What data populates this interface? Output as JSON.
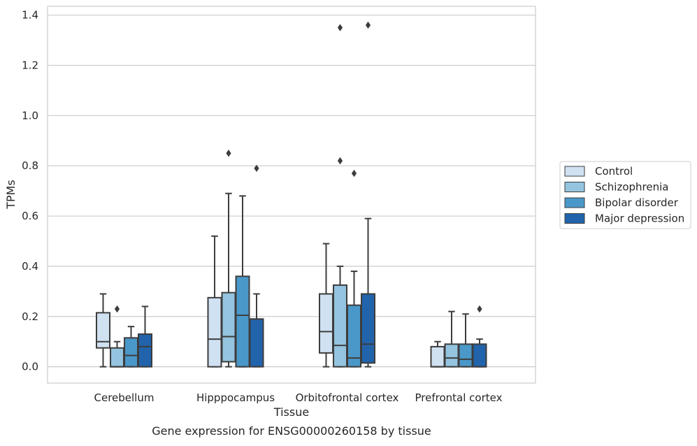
{
  "chart_data": {
    "type": "box",
    "xlabel": "Tissue",
    "ylabel": "TPMs",
    "caption": "Gene expression for ENSG00000260158 by tissue",
    "ylim": [
      -0.065,
      1.435
    ],
    "yticks": [
      0.0,
      0.2,
      0.4,
      0.6,
      0.8,
      1.0,
      1.2,
      1.4
    ],
    "ytick_labels": [
      "0.0",
      "0.2",
      "0.4",
      "0.6",
      "0.8",
      "1.0",
      "1.2",
      "1.4"
    ],
    "grid": "horizontal",
    "legend_position": "right",
    "categories": [
      "Cerebellum",
      "Hipppocampus",
      "Orbitofrontal cortex",
      "Prefrontal cortex"
    ],
    "series": [
      {
        "name": "Control",
        "color": "#d0e1f2",
        "boxes": [
          {
            "whislo": 0.0,
            "q1": 0.075,
            "med": 0.1,
            "q3": 0.215,
            "whishi": 0.29,
            "fliers": []
          },
          {
            "whislo": 0.0,
            "q1": 0.0,
            "med": 0.11,
            "q3": 0.275,
            "whishi": 0.52,
            "fliers": []
          },
          {
            "whislo": 0.0,
            "q1": 0.055,
            "med": 0.14,
            "q3": 0.29,
            "whishi": 0.49,
            "fliers": []
          },
          {
            "whislo": 0.0,
            "q1": 0.0,
            "med": 0.0,
            "q3": 0.08,
            "whishi": 0.1,
            "fliers": []
          }
        ]
      },
      {
        "name": "Schizophrenia",
        "color": "#94c4df",
        "boxes": [
          {
            "whislo": 0.0,
            "q1": 0.0,
            "med": 0.0,
            "q3": 0.075,
            "whishi": 0.1,
            "fliers": [
              0.23
            ]
          },
          {
            "whislo": 0.0,
            "q1": 0.02,
            "med": 0.12,
            "q3": 0.295,
            "whishi": 0.69,
            "fliers": [
              0.85
            ]
          },
          {
            "whislo": 0.0,
            "q1": 0.0,
            "med": 0.085,
            "q3": 0.325,
            "whishi": 0.4,
            "fliers": [
              0.82,
              1.35
            ]
          },
          {
            "whislo": 0.0,
            "q1": 0.0,
            "med": 0.035,
            "q3": 0.09,
            "whishi": 0.22,
            "fliers": []
          }
        ]
      },
      {
        "name": "Bipolar disorder",
        "color": "#4a98c9",
        "boxes": [
          {
            "whislo": 0.0,
            "q1": 0.0,
            "med": 0.045,
            "q3": 0.115,
            "whishi": 0.16,
            "fliers": []
          },
          {
            "whislo": 0.0,
            "q1": 0.0,
            "med": 0.205,
            "q3": 0.36,
            "whishi": 0.68,
            "fliers": []
          },
          {
            "whislo": 0.0,
            "q1": 0.0,
            "med": 0.035,
            "q3": 0.245,
            "whishi": 0.38,
            "fliers": [
              0.77
            ]
          },
          {
            "whislo": 0.0,
            "q1": 0.0,
            "med": 0.03,
            "q3": 0.09,
            "whishi": 0.21,
            "fliers": []
          }
        ]
      },
      {
        "name": "Major depression",
        "color": "#2164ab",
        "boxes": [
          {
            "whislo": 0.0,
            "q1": 0.0,
            "med": 0.08,
            "q3": 0.13,
            "whishi": 0.24,
            "fliers": []
          },
          {
            "whislo": 0.0,
            "q1": 0.0,
            "med": 0.19,
            "q3": 0.19,
            "whishi": 0.29,
            "fliers": [
              0.79
            ]
          },
          {
            "whislo": 0.0,
            "q1": 0.015,
            "med": 0.09,
            "q3": 0.29,
            "whishi": 0.59,
            "fliers": [
              1.36
            ]
          },
          {
            "whislo": 0.0,
            "q1": 0.0,
            "med": 0.0,
            "q3": 0.09,
            "whishi": 0.11,
            "fliers": [
              0.23
            ]
          }
        ]
      }
    ]
  }
}
